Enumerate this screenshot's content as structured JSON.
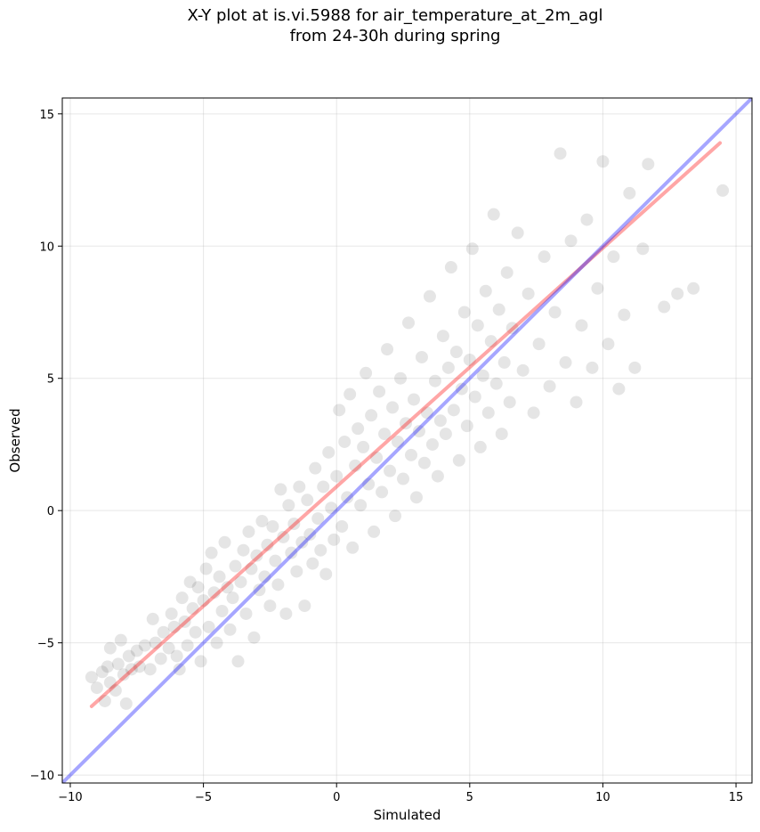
{
  "chart_data": {
    "type": "scatter",
    "title_line1": "X-Y plot at is.vi.5988 for air_temperature_at_2m_agl",
    "title_line2": "from 24-30h during spring",
    "xlabel": "Simulated",
    "ylabel": "Observed",
    "xlim": [
      -10.3,
      15.6
    ],
    "ylim": [
      -10.3,
      15.6
    ],
    "x_ticks": [
      -10,
      -5,
      0,
      5,
      10,
      15
    ],
    "y_ticks": [
      -10,
      -5,
      0,
      5,
      10,
      15
    ],
    "x_tick_labels": [
      "−10",
      "−5",
      "0",
      "5",
      "10",
      "15"
    ],
    "y_tick_labels": [
      "−10",
      "−5",
      "0",
      "5",
      "10",
      "15"
    ],
    "grid": true,
    "point_color": "#000000",
    "point_alpha": 0.1,
    "series": [
      {
        "type": "scatter",
        "points": [
          [
            -9.2,
            -6.3
          ],
          [
            -9.0,
            -6.7
          ],
          [
            -8.8,
            -6.1
          ],
          [
            -8.7,
            -7.2
          ],
          [
            -8.6,
            -5.9
          ],
          [
            -8.5,
            -6.5
          ],
          [
            -8.5,
            -5.2
          ],
          [
            -8.3,
            -6.8
          ],
          [
            -8.2,
            -5.8
          ],
          [
            -8.1,
            -4.9
          ],
          [
            -8.0,
            -6.2
          ],
          [
            -7.9,
            -7.3
          ],
          [
            -7.8,
            -5.5
          ],
          [
            -7.7,
            -6.0
          ],
          [
            -7.5,
            -5.3
          ],
          [
            -7.4,
            -5.9
          ],
          [
            -7.2,
            -5.1
          ],
          [
            -7.0,
            -6.0
          ],
          [
            -6.9,
            -4.1
          ],
          [
            -6.8,
            -5.0
          ],
          [
            -6.6,
            -5.6
          ],
          [
            -6.5,
            -4.6
          ],
          [
            -6.3,
            -5.2
          ],
          [
            -6.2,
            -3.9
          ],
          [
            -6.1,
            -4.4
          ],
          [
            -6.0,
            -5.5
          ],
          [
            -5.9,
            -6.0
          ],
          [
            -5.8,
            -3.3
          ],
          [
            -5.7,
            -4.2
          ],
          [
            -5.6,
            -5.1
          ],
          [
            -5.5,
            -2.7
          ],
          [
            -5.4,
            -3.7
          ],
          [
            -5.3,
            -4.6
          ],
          [
            -5.2,
            -2.9
          ],
          [
            -5.1,
            -5.7
          ],
          [
            -5.0,
            -3.4
          ],
          [
            -4.9,
            -2.2
          ],
          [
            -4.8,
            -4.4
          ],
          [
            -4.7,
            -1.6
          ],
          [
            -4.6,
            -3.1
          ],
          [
            -4.5,
            -5.0
          ],
          [
            -4.4,
            -2.5
          ],
          [
            -4.3,
            -3.8
          ],
          [
            -4.2,
            -1.2
          ],
          [
            -4.1,
            -2.9
          ],
          [
            -4.0,
            -4.5
          ],
          [
            -3.9,
            -3.3
          ],
          [
            -3.8,
            -2.1
          ],
          [
            -3.7,
            -5.7
          ],
          [
            -3.6,
            -2.7
          ],
          [
            -3.5,
            -1.5
          ],
          [
            -3.4,
            -3.9
          ],
          [
            -3.3,
            -0.8
          ],
          [
            -3.2,
            -2.2
          ],
          [
            -3.1,
            -4.8
          ],
          [
            -3.0,
            -1.7
          ],
          [
            -2.9,
            -3.0
          ],
          [
            -2.8,
            -0.4
          ],
          [
            -2.7,
            -2.5
          ],
          [
            -2.6,
            -1.3
          ],
          [
            -2.5,
            -3.6
          ],
          [
            -2.4,
            -0.6
          ],
          [
            -2.3,
            -1.9
          ],
          [
            -2.2,
            -2.8
          ],
          [
            -2.1,
            0.8
          ],
          [
            -2.0,
            -1.0
          ],
          [
            -1.9,
            -3.9
          ],
          [
            -1.8,
            0.2
          ],
          [
            -1.7,
            -1.6
          ],
          [
            -1.6,
            -0.5
          ],
          [
            -1.5,
            -2.3
          ],
          [
            -1.4,
            0.9
          ],
          [
            -1.3,
            -1.2
          ],
          [
            -1.2,
            -3.6
          ],
          [
            -1.1,
            0.4
          ],
          [
            -1.0,
            -0.9
          ],
          [
            -0.9,
            -2.0
          ],
          [
            -0.8,
            1.6
          ],
          [
            -0.7,
            -0.3
          ],
          [
            -0.6,
            -1.5
          ],
          [
            -0.5,
            0.9
          ],
          [
            -0.4,
            -2.4
          ],
          [
            -0.3,
            2.2
          ],
          [
            -0.2,
            0.1
          ],
          [
            -0.1,
            -1.1
          ],
          [
            0.0,
            1.3
          ],
          [
            0.1,
            3.8
          ],
          [
            0.2,
            -0.6
          ],
          [
            0.3,
            2.6
          ],
          [
            0.4,
            0.5
          ],
          [
            0.5,
            4.4
          ],
          [
            0.6,
            -1.4
          ],
          [
            0.7,
            1.7
          ],
          [
            0.8,
            3.1
          ],
          [
            0.9,
            0.2
          ],
          [
            1.0,
            2.4
          ],
          [
            1.1,
            5.2
          ],
          [
            1.2,
            1.0
          ],
          [
            1.3,
            3.6
          ],
          [
            1.4,
            -0.8
          ],
          [
            1.5,
            2.0
          ],
          [
            1.6,
            4.5
          ],
          [
            1.7,
            0.7
          ],
          [
            1.8,
            2.9
          ],
          [
            1.9,
            6.1
          ],
          [
            2.0,
            1.5
          ],
          [
            2.1,
            3.9
          ],
          [
            2.2,
            -0.2
          ],
          [
            2.3,
            2.6
          ],
          [
            2.4,
            5.0
          ],
          [
            2.5,
            1.2
          ],
          [
            2.6,
            3.3
          ],
          [
            2.7,
            7.1
          ],
          [
            2.8,
            2.1
          ],
          [
            2.9,
            4.2
          ],
          [
            3.0,
            0.5
          ],
          [
            3.1,
            3.0
          ],
          [
            3.2,
            5.8
          ],
          [
            3.3,
            1.8
          ],
          [
            3.4,
            3.7
          ],
          [
            3.5,
            8.1
          ],
          [
            3.6,
            2.5
          ],
          [
            3.7,
            4.9
          ],
          [
            3.8,
            1.3
          ],
          [
            3.9,
            3.4
          ],
          [
            4.0,
            6.6
          ],
          [
            4.1,
            2.9
          ],
          [
            4.2,
            5.4
          ],
          [
            4.3,
            9.2
          ],
          [
            4.4,
            3.8
          ],
          [
            4.5,
            6.0
          ],
          [
            4.6,
            1.9
          ],
          [
            4.7,
            4.6
          ],
          [
            4.8,
            7.5
          ],
          [
            4.9,
            3.2
          ],
          [
            5.0,
            5.7
          ],
          [
            5.1,
            9.9
          ],
          [
            5.2,
            4.3
          ],
          [
            5.3,
            7.0
          ],
          [
            5.4,
            2.4
          ],
          [
            5.5,
            5.1
          ],
          [
            5.6,
            8.3
          ],
          [
            5.7,
            3.7
          ],
          [
            5.8,
            6.4
          ],
          [
            5.9,
            11.2
          ],
          [
            6.0,
            4.8
          ],
          [
            6.1,
            7.6
          ],
          [
            6.2,
            2.9
          ],
          [
            6.3,
            5.6
          ],
          [
            6.4,
            9.0
          ],
          [
            6.5,
            4.1
          ],
          [
            6.6,
            6.9
          ],
          [
            6.8,
            10.5
          ],
          [
            7.0,
            5.3
          ],
          [
            7.2,
            8.2
          ],
          [
            7.4,
            3.7
          ],
          [
            7.6,
            6.3
          ],
          [
            7.8,
            9.6
          ],
          [
            8.0,
            4.7
          ],
          [
            8.2,
            7.5
          ],
          [
            8.4,
            13.5
          ],
          [
            8.6,
            5.6
          ],
          [
            8.8,
            10.2
          ],
          [
            9.0,
            4.1
          ],
          [
            9.2,
            7.0
          ],
          [
            9.4,
            11.0
          ],
          [
            9.6,
            5.4
          ],
          [
            9.8,
            8.4
          ],
          [
            10.0,
            13.2
          ],
          [
            10.2,
            6.3
          ],
          [
            10.4,
            9.6
          ],
          [
            10.6,
            4.6
          ],
          [
            10.8,
            7.4
          ],
          [
            11.0,
            12.0
          ],
          [
            11.2,
            5.4
          ],
          [
            11.5,
            9.9
          ],
          [
            11.7,
            13.1
          ],
          [
            12.3,
            7.7
          ],
          [
            12.8,
            8.2
          ],
          [
            13.4,
            8.4
          ],
          [
            14.5,
            12.1
          ]
        ]
      },
      {
        "type": "line",
        "name": "",
        "color": "#ff0000",
        "points": [
          [
            -9.2,
            -7.4
          ],
          [
            14.4,
            13.9
          ]
        ]
      },
      {
        "type": "line",
        "name": "",
        "color": "#0000ff",
        "points": [
          [
            -10.3,
            -10.3
          ],
          [
            15.6,
            15.6
          ]
        ]
      }
    ]
  }
}
